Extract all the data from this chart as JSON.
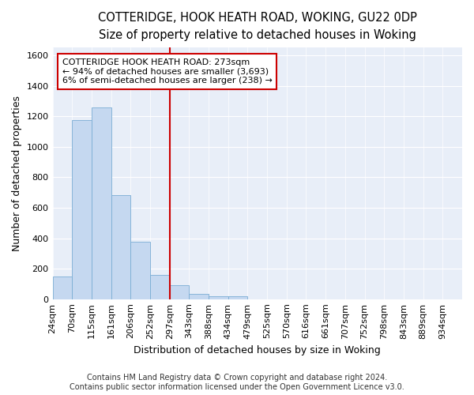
{
  "title1": "COTTERIDGE, HOOK HEATH ROAD, WOKING, GU22 0DP",
  "title2": "Size of property relative to detached houses in Woking",
  "xlabel": "Distribution of detached houses by size in Woking",
  "ylabel": "Number of detached properties",
  "bar_values": [
    150,
    1175,
    1260,
    685,
    375,
    160,
    90,
    35,
    20,
    20,
    0,
    0,
    0,
    0,
    0,
    0,
    0,
    0,
    0,
    0
  ],
  "categories": [
    "24sqm",
    "70sqm",
    "115sqm",
    "161sqm",
    "206sqm",
    "252sqm",
    "297sqm",
    "343sqm",
    "388sqm",
    "434sqm",
    "479sqm",
    "525sqm",
    "570sqm",
    "616sqm",
    "661sqm",
    "707sqm",
    "752sqm",
    "798sqm",
    "843sqm",
    "889sqm",
    "934sqm"
  ],
  "bar_color": "#c5d8f0",
  "bar_edge_color": "#7aadd4",
  "vline_color": "#cc0000",
  "annotation_lines": [
    "COTTERIDGE HOOK HEATH ROAD: 273sqm",
    "← 94% of detached houses are smaller (3,693)",
    "6% of semi-detached houses are larger (238) →"
  ],
  "annotation_box_color": "#cc0000",
  "ylim": [
    0,
    1650
  ],
  "yticks": [
    0,
    200,
    400,
    600,
    800,
    1000,
    1200,
    1400,
    1600
  ],
  "footer1": "Contains HM Land Registry data © Crown copyright and database right 2024.",
  "footer2": "Contains public sector information licensed under the Open Government Licence v3.0.",
  "bg_color": "#e8eef8",
  "title_fontsize": 10.5,
  "subtitle_fontsize": 9.5,
  "axis_label_fontsize": 9,
  "tick_fontsize": 8,
  "footer_fontsize": 7
}
